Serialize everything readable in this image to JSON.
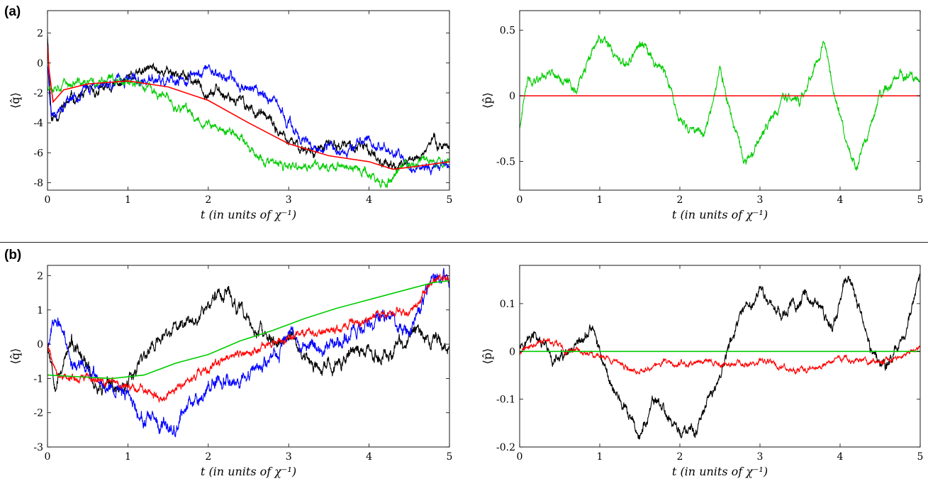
{
  "panel_labels": [
    "(a)",
    "(b)"
  ],
  "chart_data": [
    {
      "type": "line",
      "panel": "(a)",
      "xlabel": "t (in units of χ⁻¹)",
      "ylabel": "⟨q̂⟩",
      "xlim": [
        0,
        5
      ],
      "ylim": [
        -8.5,
        3.5
      ],
      "xticks": [
        0,
        1,
        2,
        3,
        4,
        5
      ],
      "yticks": [
        2,
        0,
        -2,
        -4,
        -6,
        -8
      ],
      "series": [
        {
          "color": "#000000",
          "noise": 0.35,
          "seed": 11,
          "x": [
            0,
            0.05,
            0.3,
            0.6,
            1.0,
            1.3,
            1.6,
            2.0,
            2.3,
            2.7,
            3.0,
            3.3,
            3.6,
            4.0,
            4.3,
            4.6,
            4.8,
            5.0
          ],
          "y": [
            2.0,
            -3.8,
            -2.4,
            -2.0,
            -1.2,
            -0.4,
            -0.6,
            -1.8,
            -2.2,
            -3.6,
            -5.4,
            -5.8,
            -5.5,
            -5.8,
            -7.0,
            -6.3,
            -5.2,
            -5.5
          ]
        },
        {
          "color": "#0000ff",
          "noise": 0.35,
          "seed": 23,
          "x": [
            0,
            0.05,
            0.3,
            0.6,
            1.0,
            1.3,
            1.6,
            2.0,
            2.3,
            2.7,
            3.0,
            3.3,
            3.6,
            4.0,
            4.3,
            4.6,
            5.0
          ],
          "y": [
            0.0,
            -3.3,
            -2.2,
            -1.4,
            -1.2,
            -1.2,
            -1.5,
            -0.3,
            -1.2,
            -2.0,
            -4.0,
            -6.0,
            -5.8,
            -5.2,
            -6.0,
            -7.0,
            -6.8
          ]
        },
        {
          "color": "#00cc00",
          "noise": 0.3,
          "seed": 37,
          "x": [
            0,
            0.1,
            0.5,
            1.0,
            1.4,
            1.8,
            2.1,
            2.4,
            2.7,
            3.0,
            3.3,
            3.6,
            4.0,
            4.2,
            4.4,
            4.7,
            5.0
          ],
          "y": [
            -1.5,
            -1.3,
            -1.4,
            -1.0,
            -2.2,
            -3.5,
            -4.4,
            -4.9,
            -6.6,
            -7.1,
            -6.9,
            -6.8,
            -7.4,
            -8.2,
            -7.0,
            -6.5,
            -6.5
          ]
        },
        {
          "color": "#ff0000",
          "noise": 0.0,
          "seed": 5,
          "x": [
            0,
            0.02,
            0.07,
            0.2,
            0.5,
            1.0,
            1.5,
            2.0,
            2.5,
            3.0,
            3.5,
            4.0,
            4.3,
            4.6,
            5.0
          ],
          "y": [
            1.2,
            -0.5,
            -2.6,
            -1.8,
            -1.4,
            -1.2,
            -1.6,
            -2.5,
            -4.0,
            -5.4,
            -6.2,
            -6.6,
            -7.1,
            -6.9,
            -6.6
          ]
        }
      ]
    },
    {
      "type": "line",
      "panel": "(a)",
      "xlabel": "t (in units of χ⁻¹)",
      "ylabel": "⟨p̂⟩",
      "xlim": [
        0,
        5
      ],
      "ylim": [
        -0.72,
        0.65
      ],
      "xticks": [
        0,
        1,
        2,
        3,
        4,
        5
      ],
      "yticks": [
        0.5,
        0,
        -0.5
      ],
      "series": [
        {
          "color": "#00cc00",
          "noise": 0.035,
          "seed": 41,
          "x": [
            0,
            0.1,
            0.4,
            0.7,
            1.0,
            1.3,
            1.5,
            1.8,
            2.0,
            2.3,
            2.5,
            2.8,
            3.0,
            3.3,
            3.5,
            3.8,
            4.0,
            4.2,
            4.5,
            4.7,
            5.0
          ],
          "y": [
            -0.25,
            0.1,
            0.2,
            0.05,
            0.45,
            0.2,
            0.4,
            0.2,
            -0.2,
            -0.3,
            0.2,
            -0.55,
            -0.35,
            0.0,
            -0.05,
            0.4,
            -0.15,
            -0.6,
            0.0,
            0.15,
            0.1
          ]
        },
        {
          "color": "#ff0000",
          "noise": 0.0,
          "seed": 1,
          "x": [
            0,
            5
          ],
          "y": [
            0,
            0
          ]
        }
      ]
    },
    {
      "type": "line",
      "panel": "(b)",
      "xlabel": "t (in units of χ⁻¹)",
      "ylabel": "⟨q̂⟩",
      "xlim": [
        0,
        5
      ],
      "ylim": [
        -3.0,
        2.3
      ],
      "xticks": [
        0,
        1,
        2,
        3,
        4,
        5
      ],
      "yticks": [
        2,
        1,
        0,
        -1,
        -2,
        -3
      ],
      "series": [
        {
          "color": "#000000",
          "noise": 0.2,
          "seed": 53,
          "x": [
            0,
            0.1,
            0.3,
            0.6,
            0.9,
            1.2,
            1.5,
            1.8,
            2.0,
            2.2,
            2.5,
            2.8,
            3.0,
            3.4,
            3.8,
            4.2,
            4.6,
            5.0
          ],
          "y": [
            0.0,
            -1.0,
            0.0,
            -1.2,
            -1.3,
            -0.3,
            0.3,
            0.8,
            1.2,
            1.6,
            0.6,
            0.0,
            0.2,
            -0.9,
            -0.2,
            -0.3,
            0.3,
            0.0
          ]
        },
        {
          "color": "#0000ff",
          "noise": 0.2,
          "seed": 67,
          "x": [
            0,
            0.1,
            0.3,
            0.6,
            1.0,
            1.2,
            1.5,
            1.8,
            2.1,
            2.5,
            2.8,
            3.0,
            3.4,
            3.8,
            4.2,
            4.5,
            4.8,
            5.0
          ],
          "y": [
            0.0,
            1.0,
            -0.5,
            -1.0,
            -1.4,
            -2.2,
            -2.6,
            -1.6,
            -1.0,
            -0.9,
            -0.5,
            0.3,
            -0.2,
            0.4,
            0.8,
            0.3,
            2.0,
            1.8
          ]
        },
        {
          "color": "#ff0000",
          "noise": 0.12,
          "seed": 79,
          "x": [
            0,
            0.1,
            0.4,
            0.8,
            1.1,
            1.4,
            1.8,
            2.2,
            2.6,
            3.0,
            3.4,
            3.8,
            4.2,
            4.6,
            4.8,
            5.0
          ],
          "y": [
            0.0,
            -0.8,
            -1.0,
            -1.1,
            -1.3,
            -1.6,
            -1.0,
            -0.5,
            -0.2,
            0.2,
            0.4,
            0.6,
            0.9,
            1.1,
            1.9,
            1.8
          ]
        },
        {
          "color": "#00cc00",
          "noise": 0.0,
          "seed": 3,
          "x": [
            0,
            0.4,
            0.8,
            1.2,
            1.6,
            2.0,
            2.4,
            2.8,
            3.2,
            3.6,
            4.0,
            4.4,
            4.8,
            5.0
          ],
          "y": [
            -0.9,
            -0.95,
            -1.0,
            -0.9,
            -0.55,
            -0.3,
            0.1,
            0.4,
            0.75,
            1.05,
            1.3,
            1.55,
            1.8,
            1.85
          ]
        }
      ]
    },
    {
      "type": "line",
      "panel": "(b)",
      "xlabel": "t (in units of χ⁻¹)",
      "ylabel": "⟨p̂⟩",
      "xlim": [
        0,
        5
      ],
      "ylim": [
        -0.2,
        0.18
      ],
      "xticks": [
        0,
        1,
        2,
        3,
        4,
        5
      ],
      "yticks": [
        0.1,
        0,
        -0.1,
        -0.2
      ],
      "series": [
        {
          "color": "#000000",
          "noise": 0.012,
          "seed": 97,
          "x": [
            0,
            0.2,
            0.4,
            0.7,
            0.9,
            1.1,
            1.3,
            1.5,
            1.7,
            2.0,
            2.2,
            2.5,
            2.7,
            3.0,
            3.3,
            3.6,
            3.9,
            4.1,
            4.4,
            4.6,
            4.8,
            5.0
          ],
          "y": [
            0.02,
            0.03,
            -0.02,
            -0.01,
            0.05,
            -0.05,
            -0.12,
            -0.18,
            -0.1,
            -0.17,
            -0.17,
            -0.05,
            0.05,
            0.12,
            0.08,
            0.12,
            0.05,
            0.16,
            0.0,
            -0.03,
            0.04,
            0.15
          ]
        },
        {
          "color": "#ff0000",
          "noise": 0.006,
          "seed": 109,
          "x": [
            0,
            0.35,
            0.6,
            1.0,
            1.4,
            1.8,
            2.2,
            2.6,
            3.0,
            3.5,
            4.0,
            4.5,
            4.8,
            5.0
          ],
          "y": [
            0.0,
            0.025,
            0.0,
            -0.01,
            -0.04,
            -0.02,
            -0.025,
            -0.03,
            -0.02,
            -0.04,
            -0.015,
            -0.025,
            -0.01,
            0.005
          ]
        },
        {
          "color": "#00cc00",
          "noise": 0.0,
          "seed": 2,
          "x": [
            0,
            5
          ],
          "y": [
            0,
            0
          ]
        }
      ]
    }
  ]
}
